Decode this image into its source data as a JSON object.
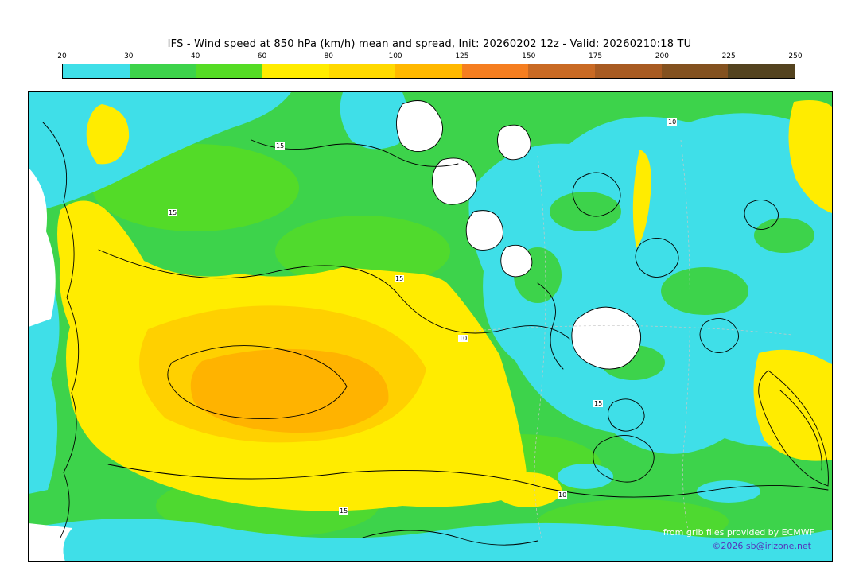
{
  "header": {
    "title": "IFS - Wind speed at 850 hPa (km/h) mean and spread, Init: 20260202 12z - Valid: 20260210:18 TU"
  },
  "colorbar": {
    "ticks": [
      "20",
      "30",
      "40",
      "60",
      "80",
      "100",
      "125",
      "150",
      "175",
      "200",
      "225",
      "250"
    ],
    "segments": [
      {
        "from": 20,
        "to": 30,
        "color": "#3FDFE8"
      },
      {
        "from": 30,
        "to": 40,
        "color": "#3DD34B"
      },
      {
        "from": 40,
        "to": 60,
        "color": "#55DC25"
      },
      {
        "from": 60,
        "to": 80,
        "color": "#FFEC00"
      },
      {
        "from": 80,
        "to": 100,
        "color": "#FFD900"
      },
      {
        "from": 100,
        "to": 125,
        "color": "#FFB800"
      },
      {
        "from": 125,
        "to": 150,
        "color": "#F57E20"
      },
      {
        "from": 150,
        "to": 175,
        "color": "#C96A24"
      },
      {
        "from": 175,
        "to": 200,
        "color": "#A85B22"
      },
      {
        "from": 200,
        "to": 225,
        "color": "#83511F"
      },
      {
        "from": 225,
        "to": 250,
        "color": "#54431F"
      }
    ]
  },
  "map": {
    "contour_labels": [
      "15",
      "15",
      "15",
      "10",
      "10",
      "15",
      "15",
      "10"
    ],
    "footer": {
      "line1": "from grib files provided by ECMWF",
      "line2": "©2026 sb@irizone.net"
    }
  },
  "chart_data": {
    "type": "heatmap",
    "title": "IFS - Wind speed at 850 hPa (km/h) mean and spread",
    "model": "IFS",
    "variable": "Wind speed at 850 hPa",
    "units": "km/h",
    "init": "20260202 12z",
    "valid": "20260210:18 TU",
    "legend_position": "top",
    "legend_levels": [
      20,
      30,
      40,
      60,
      80,
      100,
      125,
      150,
      175,
      200,
      225,
      250
    ],
    "legend_colors": [
      "#3FDFE8",
      "#3DD34B",
      "#55DC25",
      "#FFEC00",
      "#FFD900",
      "#FFB800",
      "#F57E20",
      "#C96A24",
      "#A85B22",
      "#83511F",
      "#54431F"
    ],
    "spread_contour_labels_shown": [
      10,
      15
    ],
    "notes": "Filled contours show ensemble-mean wind speed (white below 20 km/h, cyan 20-30, greens 30-60, yellows 60-100, orange 100-125). Thin black contours show ensemble spread labeled 10 and 15."
  }
}
